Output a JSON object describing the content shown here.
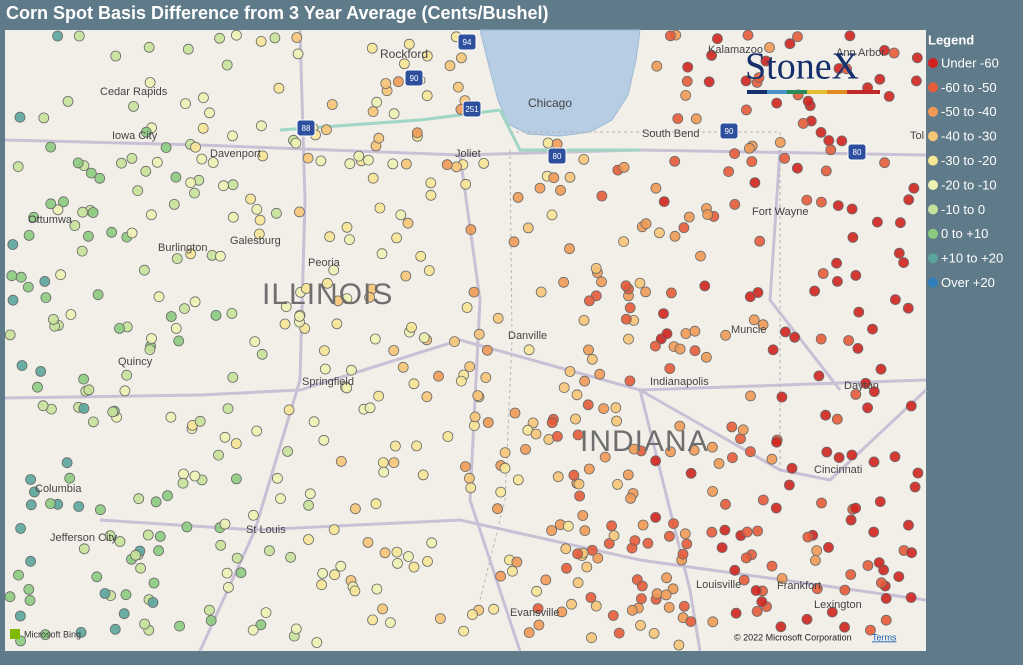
{
  "header": {
    "title": "Corn Spot Basis Difference from 3 Year Average (Cents/Bushel)"
  },
  "legend": {
    "title": "Legend",
    "items": [
      {
        "label": "Under -60",
        "color": "#d0231f"
      },
      {
        "label": "-60 to -50",
        "color": "#e65b3a"
      },
      {
        "label": "-50 to -40",
        "color": "#f09a55"
      },
      {
        "label": "-40 to -30",
        "color": "#f6c577"
      },
      {
        "label": "-30 to -20",
        "color": "#f7e596"
      },
      {
        "label": "-20 to -10",
        "color": "#eef2b2"
      },
      {
        "label": "-10 to 0",
        "color": "#c6e29a"
      },
      {
        "label": "0 to +10",
        "color": "#8ccb7e"
      },
      {
        "label": "+10 to +20",
        "color": "#5aa59c"
      },
      {
        "label": "Over +20",
        "color": "#2f7fbf"
      }
    ]
  },
  "logo": {
    "text": "StoneX"
  },
  "map": {
    "labels": [
      "Rockford",
      "Chicago",
      "Kalamazoo",
      "Ann Arbor",
      "Cedar Rapids",
      "Iowa City",
      "Davenport",
      "Joliet",
      "South Bend",
      "Tol",
      "Ottumwa",
      "Burlington",
      "Galesburg",
      "Fort Wayne",
      "Peoria",
      "ILLINOIS",
      "Danville",
      "Muncie",
      "Quincy",
      "Springfield",
      "Indianapolis",
      "Dayton",
      "INDIANA",
      "Cincinnati",
      "Columbia",
      "Jefferson City",
      "St Louis",
      "Louisville",
      "Frankfort",
      "Lexington",
      "Evansville"
    ],
    "shields": [
      "94",
      "90",
      "251",
      "88",
      "80",
      "90",
      "80"
    ]
  },
  "footer": {
    "provider": "Microsoft Bing",
    "copyright": "© 2022 Microsoft Corporation",
    "terms": "Terms"
  }
}
